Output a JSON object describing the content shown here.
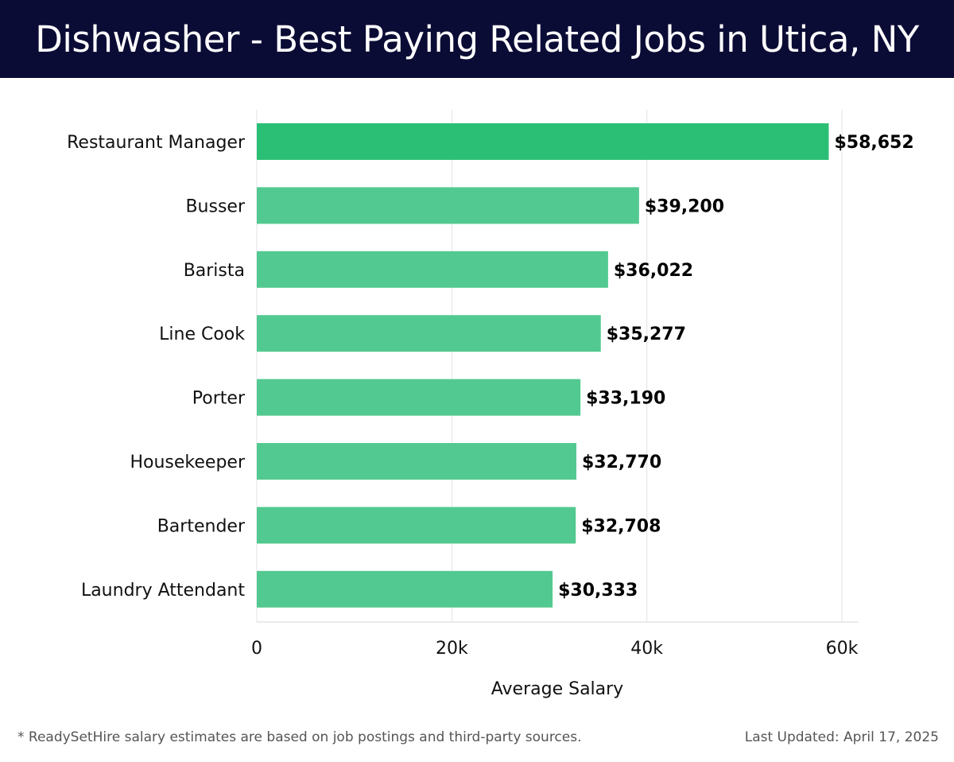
{
  "chart_data": {
    "type": "bar",
    "orientation": "horizontal",
    "title": "Dishwasher - Best Paying Related Jobs in Utica, NY",
    "xlabel": "Average Salary",
    "ylabel": "",
    "categories": [
      "Restaurant Manager",
      "Busser",
      "Barista",
      "Line Cook",
      "Porter",
      "Housekeeper",
      "Bartender",
      "Laundry Attendant"
    ],
    "values": [
      58652,
      39200,
      36022,
      35277,
      33190,
      32770,
      32708,
      30333
    ],
    "value_labels": [
      "$58,652",
      "$39,200",
      "$36,022",
      "$35,277",
      "$33,190",
      "$32,770",
      "$32,708",
      "$30,333"
    ],
    "xlim": [
      0,
      60000
    ],
    "xticks": [
      0,
      20000,
      40000,
      60000
    ],
    "xtick_labels": [
      "0",
      "20k",
      "40k",
      "60k"
    ],
    "grid": true,
    "colors": {
      "highlight_bar": "#2bbf76",
      "bar": "#52c990",
      "grid": "#e3e3e3",
      "title_background": "#0b0c35"
    }
  },
  "footer": {
    "note": "* ReadySetHire salary estimates are based on job postings and third-party sources.",
    "updated": "Last Updated: April 17, 2025"
  }
}
